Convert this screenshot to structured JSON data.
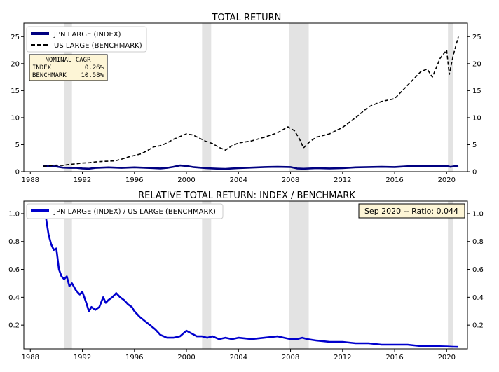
{
  "chart_data": [
    {
      "type": "line",
      "title": "TOTAL RETURN",
      "xlabel": "",
      "ylabel": "",
      "xlim": [
        1987.5,
        2021.6
      ],
      "ylim": [
        0,
        27.5
      ],
      "x_ticks": [
        1988,
        1992,
        1996,
        2000,
        2004,
        2008,
        2012,
        2016,
        2020
      ],
      "y_ticks": [
        0,
        5,
        10,
        15,
        20,
        25
      ],
      "grid": false,
      "legend_position": "top-left",
      "recession_bands": [
        [
          1990.6,
          1991.2
        ],
        [
          2001.2,
          2001.9
        ],
        [
          2007.9,
          2009.4
        ],
        [
          2020.1,
          2020.5
        ]
      ],
      "series": [
        {
          "name": "JPN LARGE (INDEX)",
          "color": "#000080",
          "style": "solid",
          "x": [
            1989.0,
            1989.5,
            1990.0,
            1990.5,
            1991.0,
            1991.5,
            1992.0,
            1992.5,
            1993.0,
            1993.5,
            1994.0,
            1994.5,
            1995.0,
            1995.5,
            1996.0,
            1996.5,
            1997.0,
            1997.5,
            1998.0,
            1998.5,
            1999.0,
            1999.5,
            2000.0,
            2000.5,
            2001.0,
            2001.5,
            2002.0,
            2002.5,
            2003.0,
            2003.5,
            2004.0,
            2005.0,
            2006.0,
            2007.0,
            2008.0,
            2008.5,
            2009.0,
            2010.0,
            2011.0,
            2012.0,
            2013.0,
            2014.0,
            2015.0,
            2016.0,
            2017.0,
            2018.0,
            2019.0,
            2020.0,
            2020.3,
            2020.7,
            2020.9
          ],
          "values": [
            1.0,
            1.05,
            0.95,
            0.75,
            0.7,
            0.72,
            0.6,
            0.55,
            0.7,
            0.75,
            0.8,
            0.75,
            0.7,
            0.75,
            0.8,
            0.75,
            0.7,
            0.65,
            0.6,
            0.7,
            0.9,
            1.15,
            1.05,
            0.85,
            0.75,
            0.65,
            0.6,
            0.55,
            0.5,
            0.6,
            0.65,
            0.75,
            0.85,
            0.9,
            0.85,
            0.6,
            0.55,
            0.65,
            0.6,
            0.65,
            0.8,
            0.85,
            0.9,
            0.85,
            1.0,
            1.05,
            1.0,
            1.05,
            0.9,
            1.05,
            1.1
          ]
        },
        {
          "name": "US LARGE (BENCHMARK)",
          "color": "#000000",
          "style": "dashed",
          "x": [
            1989.0,
            1989.5,
            1990.0,
            1990.5,
            1991.0,
            1991.5,
            1992.0,
            1992.5,
            1993.0,
            1993.5,
            1994.0,
            1994.5,
            1995.0,
            1995.5,
            1996.0,
            1996.5,
            1997.0,
            1997.5,
            1998.0,
            1998.5,
            1999.0,
            1999.5,
            2000.0,
            2000.5,
            2001.0,
            2001.5,
            2002.0,
            2002.5,
            2003.0,
            2003.5,
            2004.0,
            2005.0,
            2006.0,
            2007.0,
            2007.8,
            2008.3,
            2008.7,
            2009.0,
            2009.5,
            2010.0,
            2011.0,
            2012.0,
            2013.0,
            2014.0,
            2015.0,
            2016.0,
            2017.0,
            2018.0,
            2018.5,
            2018.9,
            2019.5,
            2020.0,
            2020.2,
            2020.5,
            2020.9
          ],
          "values": [
            1.0,
            1.1,
            1.2,
            1.15,
            1.35,
            1.45,
            1.6,
            1.65,
            1.8,
            1.9,
            1.95,
            2.0,
            2.3,
            2.7,
            3.0,
            3.3,
            3.9,
            4.6,
            4.8,
            5.3,
            6.0,
            6.5,
            7.0,
            6.8,
            6.2,
            5.6,
            5.2,
            4.5,
            4.0,
            4.8,
            5.3,
            5.7,
            6.4,
            7.2,
            8.3,
            7.6,
            6.0,
            4.4,
            5.6,
            6.4,
            7.0,
            8.2,
            10.0,
            12.0,
            13.0,
            13.5,
            16.0,
            18.5,
            19.0,
            17.5,
            21.0,
            22.5,
            18.0,
            21.5,
            25.0
          ]
        }
      ],
      "annotation_box": {
        "title": "NOMINAL CAGR",
        "rows": [
          {
            "label": "INDEX",
            "value": "0.26%"
          },
          {
            "label": "BENCHMARK",
            "value": "10.58%"
          }
        ]
      }
    },
    {
      "type": "line",
      "title": "RELATIVE TOTAL RETURN: INDEX / BENCHMARK",
      "xlabel": "",
      "ylabel": "",
      "xlim": [
        1987.5,
        2021.6
      ],
      "ylim": [
        0.03,
        1.09
      ],
      "x_ticks": [
        1988,
        1992,
        1996,
        2000,
        2004,
        2008,
        2012,
        2016,
        2020
      ],
      "y_ticks": [
        0.2,
        0.4,
        0.6,
        0.8,
        1.0
      ],
      "grid": false,
      "legend_position": "top-left",
      "recession_bands": [
        [
          1990.6,
          1991.2
        ],
        [
          2001.2,
          2001.9
        ],
        [
          2007.9,
          2009.4
        ],
        [
          2020.1,
          2020.5
        ]
      ],
      "series": [
        {
          "name": "JPN LARGE (INDEX) / US LARGE (BENCHMARK)",
          "color": "#0000cd",
          "style": "solid",
          "x": [
            1989.0,
            1989.2,
            1989.4,
            1989.6,
            1989.8,
            1990.0,
            1990.2,
            1990.4,
            1990.6,
            1990.8,
            1991.0,
            1991.2,
            1991.5,
            1991.8,
            1992.0,
            1992.3,
            1992.5,
            1992.7,
            1993.0,
            1993.3,
            1993.6,
            1993.8,
            1994.0,
            1994.3,
            1994.6,
            1994.9,
            1995.2,
            1995.5,
            1995.8,
            1996.0,
            1996.4,
            1996.8,
            1997.2,
            1997.6,
            1998.0,
            1998.5,
            1999.0,
            1999.5,
            2000.0,
            2000.4,
            2000.8,
            2001.2,
            2001.6,
            2002.0,
            2002.5,
            2003.0,
            2003.5,
            2004.0,
            2005.0,
            2006.0,
            2007.0,
            2008.0,
            2008.5,
            2008.9,
            2009.3,
            2010.0,
            2011.0,
            2012.0,
            2013.0,
            2014.0,
            2015.0,
            2016.0,
            2017.0,
            2018.0,
            2019.0,
            2020.0,
            2020.5,
            2020.9
          ],
          "values": [
            1.0,
            0.97,
            0.85,
            0.78,
            0.74,
            0.75,
            0.6,
            0.55,
            0.53,
            0.55,
            0.48,
            0.5,
            0.45,
            0.42,
            0.44,
            0.36,
            0.3,
            0.33,
            0.31,
            0.33,
            0.4,
            0.36,
            0.38,
            0.4,
            0.43,
            0.4,
            0.38,
            0.35,
            0.33,
            0.3,
            0.26,
            0.23,
            0.2,
            0.17,
            0.13,
            0.11,
            0.11,
            0.12,
            0.16,
            0.14,
            0.12,
            0.12,
            0.11,
            0.12,
            0.1,
            0.11,
            0.1,
            0.11,
            0.1,
            0.11,
            0.12,
            0.1,
            0.1,
            0.11,
            0.1,
            0.09,
            0.08,
            0.08,
            0.07,
            0.07,
            0.06,
            0.06,
            0.06,
            0.05,
            0.05,
            0.047,
            0.045,
            0.044
          ]
        }
      ],
      "info_box": "Sep 2020 -- Ratio: 0.044"
    }
  ]
}
